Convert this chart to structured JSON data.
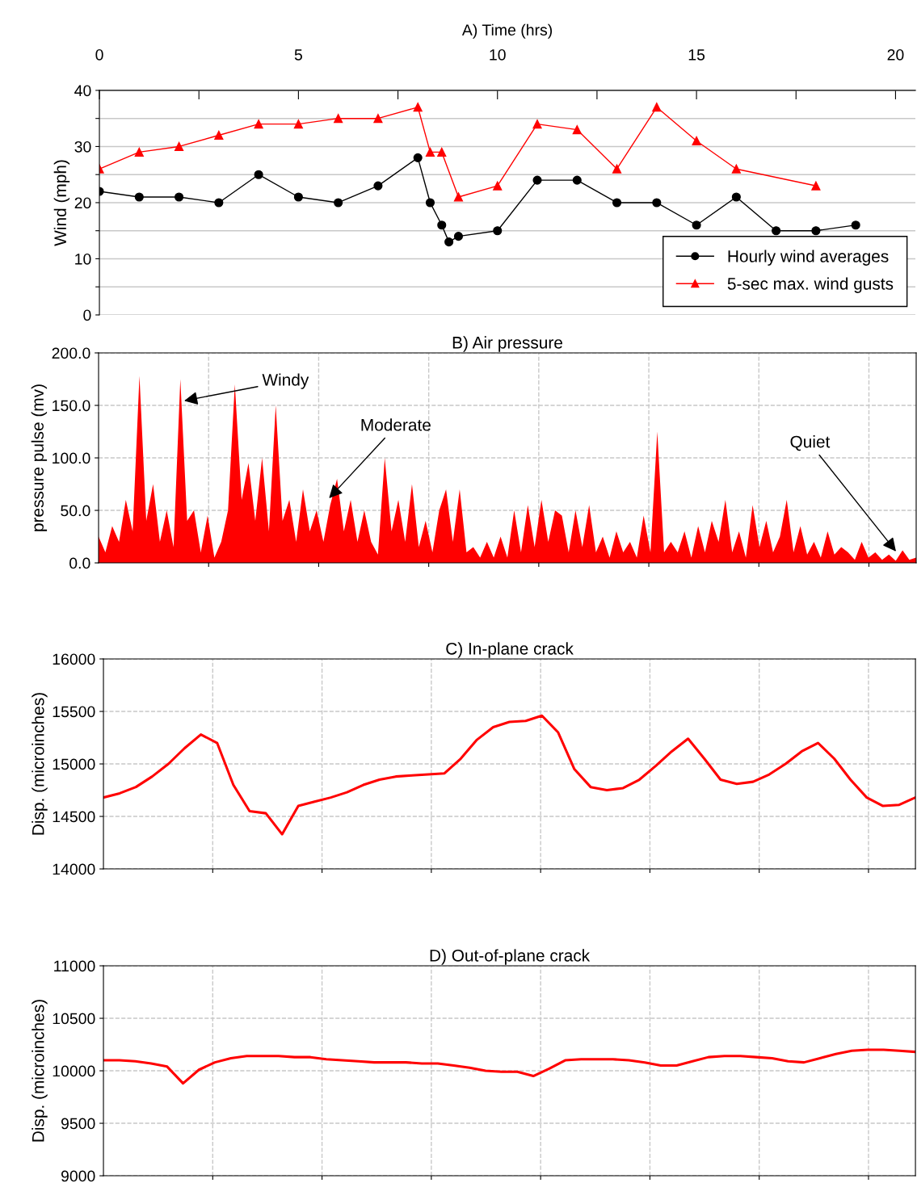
{
  "chart_data": [
    {
      "type": "line",
      "xlabel": "A) Time (hrs)",
      "ylabel": "Wind (mph)",
      "xlim": [
        0,
        20.5
      ],
      "ylim": [
        0,
        40
      ],
      "xticks": [
        0,
        {
          "value": 2.5,
          "label": null
        },
        5,
        {
          "value": 7.5,
          "label": null
        },
        10,
        {
          "value": 12.5,
          "label": null
        },
        15,
        {
          "value": 17.5,
          "label": null
        },
        20
      ],
      "yticks": [
        0,
        {
          "value": 5,
          "label": null
        },
        10,
        {
          "value": 15,
          "label": null
        },
        20,
        {
          "value": 25,
          "label": null
        },
        30,
        {
          "value": 35,
          "label": null
        },
        40
      ],
      "grid": "y",
      "legend": "bottom right",
      "series": [
        {
          "name": "Hourly wind averages",
          "color": "#000000",
          "marker": "circle",
          "x": [
            0,
            1,
            2,
            3,
            4,
            5,
            6,
            7,
            8,
            8.31,
            8.6,
            8.78,
            9.02,
            10,
            11,
            12,
            13,
            14,
            15,
            16,
            17,
            18,
            19
          ],
          "values": [
            22,
            21,
            21,
            20,
            25,
            21,
            20,
            23,
            28,
            20,
            16,
            13,
            14,
            15,
            24,
            24,
            20,
            20,
            16,
            21,
            15,
            15,
            16
          ]
        },
        {
          "name": "5-sec max. wind gusts",
          "color": "#ff0000",
          "marker": "triangle",
          "x": [
            0,
            1,
            2,
            3,
            4,
            5,
            6,
            7,
            8,
            8.31,
            8.6,
            9.02,
            10,
            11,
            12,
            13,
            14,
            15,
            16,
            18
          ],
          "values": [
            26,
            29,
            30,
            32,
            34,
            34,
            35,
            35,
            37,
            29,
            29,
            21,
            23,
            34,
            33,
            26,
            37,
            31,
            26,
            23
          ]
        }
      ]
    },
    {
      "type": "area",
      "title": "B) Air pressure",
      "ylabel": "pressure pulse (mv)",
      "ylim": [
        0,
        200
      ],
      "yticks": [
        {
          "value": 0,
          "label": "0.0"
        },
        {
          "value": 50,
          "label": "50.0"
        },
        {
          "value": 100,
          "label": "100.0"
        },
        {
          "value": 150,
          "label": "150.0"
        },
        {
          "value": 200,
          "label": "200.0"
        }
      ],
      "grid": true,
      "tick_labels": "y",
      "annotations": [
        "Windy",
        "Moderate",
        "Quiet"
      ],
      "categories": [
        null,
        null,
        null,
        null,
        null,
        null,
        null,
        null,
        null,
        null,
        null,
        null,
        null,
        null,
        null,
        null,
        null,
        null,
        null,
        null,
        null,
        null,
        null,
        null,
        null,
        null,
        null,
        null,
        null,
        null,
        null,
        null,
        null,
        null,
        null,
        null,
        null,
        null,
        null,
        null,
        null,
        null,
        null,
        null,
        null,
        null,
        null,
        null,
        null,
        null,
        null,
        null,
        null,
        null,
        null,
        null,
        null,
        null,
        null,
        null,
        null,
        null,
        null,
        null,
        null,
        null,
        null,
        null,
        null,
        null,
        null,
        null,
        null,
        null,
        null,
        null,
        null,
        null,
        null,
        null,
        null,
        null,
        null,
        null,
        null,
        null,
        null,
        null,
        null,
        null,
        null,
        null,
        null,
        null,
        null,
        null,
        null,
        null,
        null,
        null,
        null,
        null,
        null,
        null,
        null,
        null,
        null,
        null,
        null,
        null,
        null,
        null,
        null,
        null,
        null,
        null,
        null,
        null,
        null,
        null,
        null
      ],
      "series": [
        {
          "color": "#ff0000",
          "values": [
            25,
            10,
            35,
            20,
            60,
            30,
            178,
            40,
            75,
            20,
            50,
            15,
            175,
            40,
            50,
            10,
            45,
            5,
            20,
            50,
            170,
            60,
            95,
            40,
            100,
            30,
            150,
            40,
            60,
            20,
            70,
            30,
            50,
            20,
            55,
            80,
            30,
            60,
            20,
            50,
            20,
            8,
            100,
            30,
            60,
            20,
            75,
            15,
            40,
            10,
            50,
            70,
            20,
            70,
            10,
            15,
            5,
            20,
            5,
            25,
            5,
            50,
            10,
            55,
            15,
            60,
            20,
            50,
            45,
            10,
            50,
            15,
            55,
            10,
            25,
            5,
            30,
            10,
            20,
            5,
            45,
            10,
            125,
            10,
            20,
            10,
            30,
            5,
            35,
            10,
            40,
            20,
            60,
            10,
            30,
            5,
            55,
            15,
            40,
            10,
            25,
            60,
            10,
            35,
            8,
            20,
            5,
            30,
            8,
            15,
            10,
            3,
            20,
            5,
            10,
            3,
            8,
            2,
            12,
            3,
            5
          ]
        }
      ]
    },
    {
      "type": "line",
      "title": "C) In-plane crack",
      "ylabel": "Disp. (microinches)",
      "ylim": [
        14000,
        16000
      ],
      "yticks": [
        14000,
        14500,
        15000,
        15500,
        16000
      ],
      "grid": true,
      "tick_labels": "y",
      "categories": [
        null,
        null,
        null,
        null,
        null,
        null,
        null,
        null,
        null,
        null,
        null,
        null,
        null,
        null,
        null,
        null,
        null,
        null,
        null,
        null,
        null,
        null,
        null,
        null,
        null,
        null,
        null,
        null,
        null,
        null,
        null,
        null,
        null,
        null,
        null,
        null,
        null,
        null,
        null,
        null,
        null,
        null,
        null,
        null,
        null,
        null,
        null,
        null,
        null,
        null,
        null
      ],
      "series": [
        {
          "color": "#ff0000",
          "values": [
            14680,
            14720,
            14780,
            14880,
            15000,
            15150,
            15280,
            15200,
            14800,
            14550,
            14530,
            14330,
            14600,
            14640,
            14680,
            14730,
            14800,
            14850,
            14880,
            14890,
            14900,
            14910,
            15050,
            15230,
            15350,
            15400,
            15410,
            15460,
            15300,
            14950,
            14780,
            14750,
            14770,
            14850,
            14980,
            15120,
            15240,
            15050,
            14850,
            14810,
            14830,
            14900,
            15000,
            15120,
            15200,
            15050,
            14850,
            14680,
            14600,
            14610,
            14680
          ]
        }
      ]
    },
    {
      "type": "line",
      "title": "D) Out-of-plane crack",
      "ylabel": "Disp. (microinches)",
      "ylim": [
        9000,
        11000
      ],
      "yticks": [
        9000,
        9500,
        10000,
        10500,
        11000
      ],
      "grid": true,
      "tick_labels": "y",
      "categories": [
        null,
        null,
        null,
        null,
        null,
        null,
        null,
        null,
        null,
        null,
        null,
        null,
        null,
        null,
        null,
        null,
        null,
        null,
        null,
        null,
        null,
        null,
        null,
        null,
        null,
        null,
        null,
        null,
        null,
        null,
        null,
        null,
        null,
        null,
        null,
        null,
        null,
        null,
        null,
        null,
        null,
        null,
        null,
        null,
        null,
        null,
        null,
        null,
        null,
        null,
        null,
        null
      ],
      "series": [
        {
          "color": "#ff0000",
          "values": [
            10100,
            10100,
            10090,
            10070,
            10040,
            9880,
            10010,
            10080,
            10120,
            10140,
            10140,
            10140,
            10130,
            10130,
            10110,
            10100,
            10090,
            10080,
            10080,
            10080,
            10070,
            10070,
            10050,
            10030,
            10000,
            9990,
            9990,
            9950,
            10020,
            10100,
            10110,
            10110,
            10110,
            10100,
            10080,
            10050,
            10050,
            10090,
            10130,
            10140,
            10140,
            10130,
            10120,
            10090,
            10080,
            10120,
            10160,
            10190,
            10200,
            10200,
            10190,
            10180
          ]
        }
      ]
    }
  ]
}
